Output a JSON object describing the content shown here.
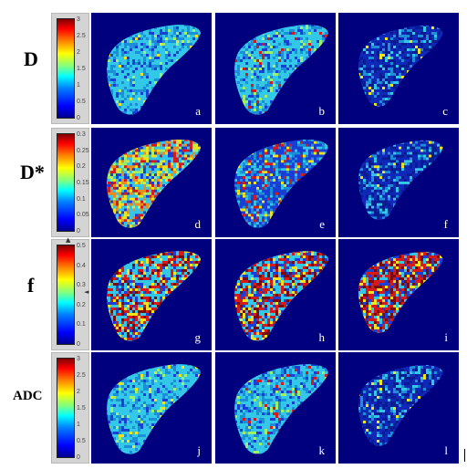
{
  "rows": [
    {
      "label": "D",
      "ticks": [
        "3",
        "2.5",
        "2",
        "1.5",
        "1",
        "0.5",
        "0"
      ],
      "panels": [
        "a",
        "b",
        "c"
      ],
      "texture": [
        "cyan-speckle",
        "cyan-band",
        "dark-sparse"
      ]
    },
    {
      "label": "D*",
      "ticks": [
        "0.3",
        "0.25",
        "0.2",
        "0.15",
        "0.1",
        "0.05",
        "0"
      ],
      "panels": [
        "d",
        "e",
        "f"
      ],
      "texture": [
        "mixed-warm",
        "blue-mixed",
        "dark-sparse"
      ]
    },
    {
      "label": "f",
      "ticks": [
        "0.5",
        "0.4",
        "0.3",
        "0.2",
        "0.1",
        "0"
      ],
      "panels": [
        "g",
        "h",
        "i"
      ],
      "texture": [
        "red-cyan",
        "red-cyan-dense",
        "red-dark"
      ]
    },
    {
      "label": "ADC",
      "ticks": [
        "3",
        "2.5",
        "2",
        "1.5",
        "1",
        "0.5",
        "0"
      ],
      "panels": [
        "j",
        "k",
        "l"
      ],
      "texture": [
        "cyan-speckle",
        "cyan-band",
        "dark-sparse"
      ]
    }
  ],
  "colors": {
    "panel_bg": "#00007e",
    "tissue_cyan": "#33c8e8",
    "tissue_blue": "#1a3fd6",
    "hot_red": "#d61a1a",
    "hot_yellow": "#f2e41a"
  }
}
